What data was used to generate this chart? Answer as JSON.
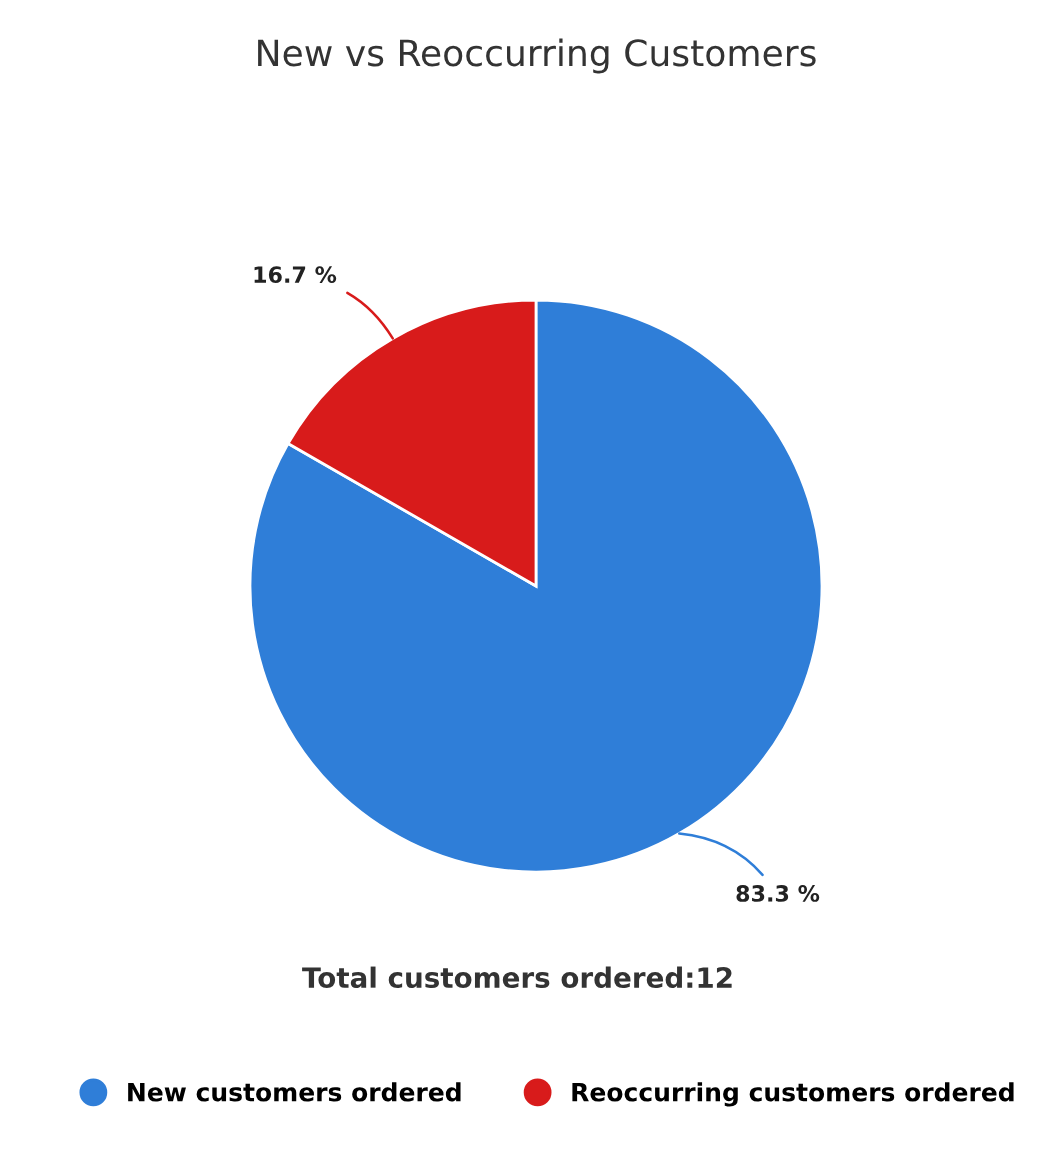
{
  "chart_data": {
    "type": "pie",
    "title": "New vs Reoccurring Customers",
    "categories": [
      "New customers ordered",
      "Reoccurring customers ordered"
    ],
    "values": [
      83.3,
      16.7
    ],
    "colors": [
      "#2f7ed8",
      "#d81b1b"
    ],
    "value_labels": [
      "83.3 %",
      "16.7 %"
    ],
    "annotations": [
      "Total customers ordered:12"
    ],
    "legend": "bottom"
  }
}
